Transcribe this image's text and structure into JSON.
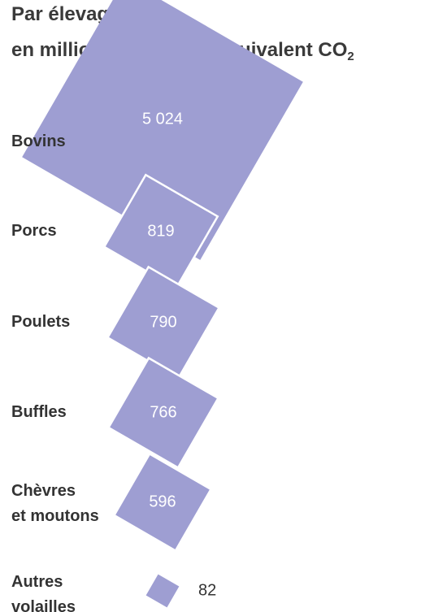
{
  "title": {
    "line1": "Par élevage,",
    "line2_main": "en millions de tonnes équivalent CO",
    "line2_sub": "2"
  },
  "colors": {
    "square_fill": "#9e9ed2",
    "value_inside": "#ffffff",
    "value_outside": "#333333",
    "label": "#333333"
  },
  "chart_data": {
    "type": "proportional-area squares",
    "title": "Par élevage, en millions de tonnes équivalent CO2",
    "categories": [
      "Bovins",
      "Porcs",
      "Poulets",
      "Buffles",
      "Chèvres et moutons",
      "Autres volailles"
    ],
    "category_lines": [
      [
        "Bovins"
      ],
      [
        "Porcs"
      ],
      [
        "Poulets"
      ],
      [
        "Buffles"
      ],
      [
        "Chèvres",
        "et moutons"
      ],
      [
        "Autres",
        "volailles"
      ]
    ],
    "values": [
      5024,
      819,
      790,
      766,
      596,
      82
    ],
    "value_labels": [
      "5 024",
      "819",
      "790",
      "766",
      "596",
      "82"
    ]
  }
}
